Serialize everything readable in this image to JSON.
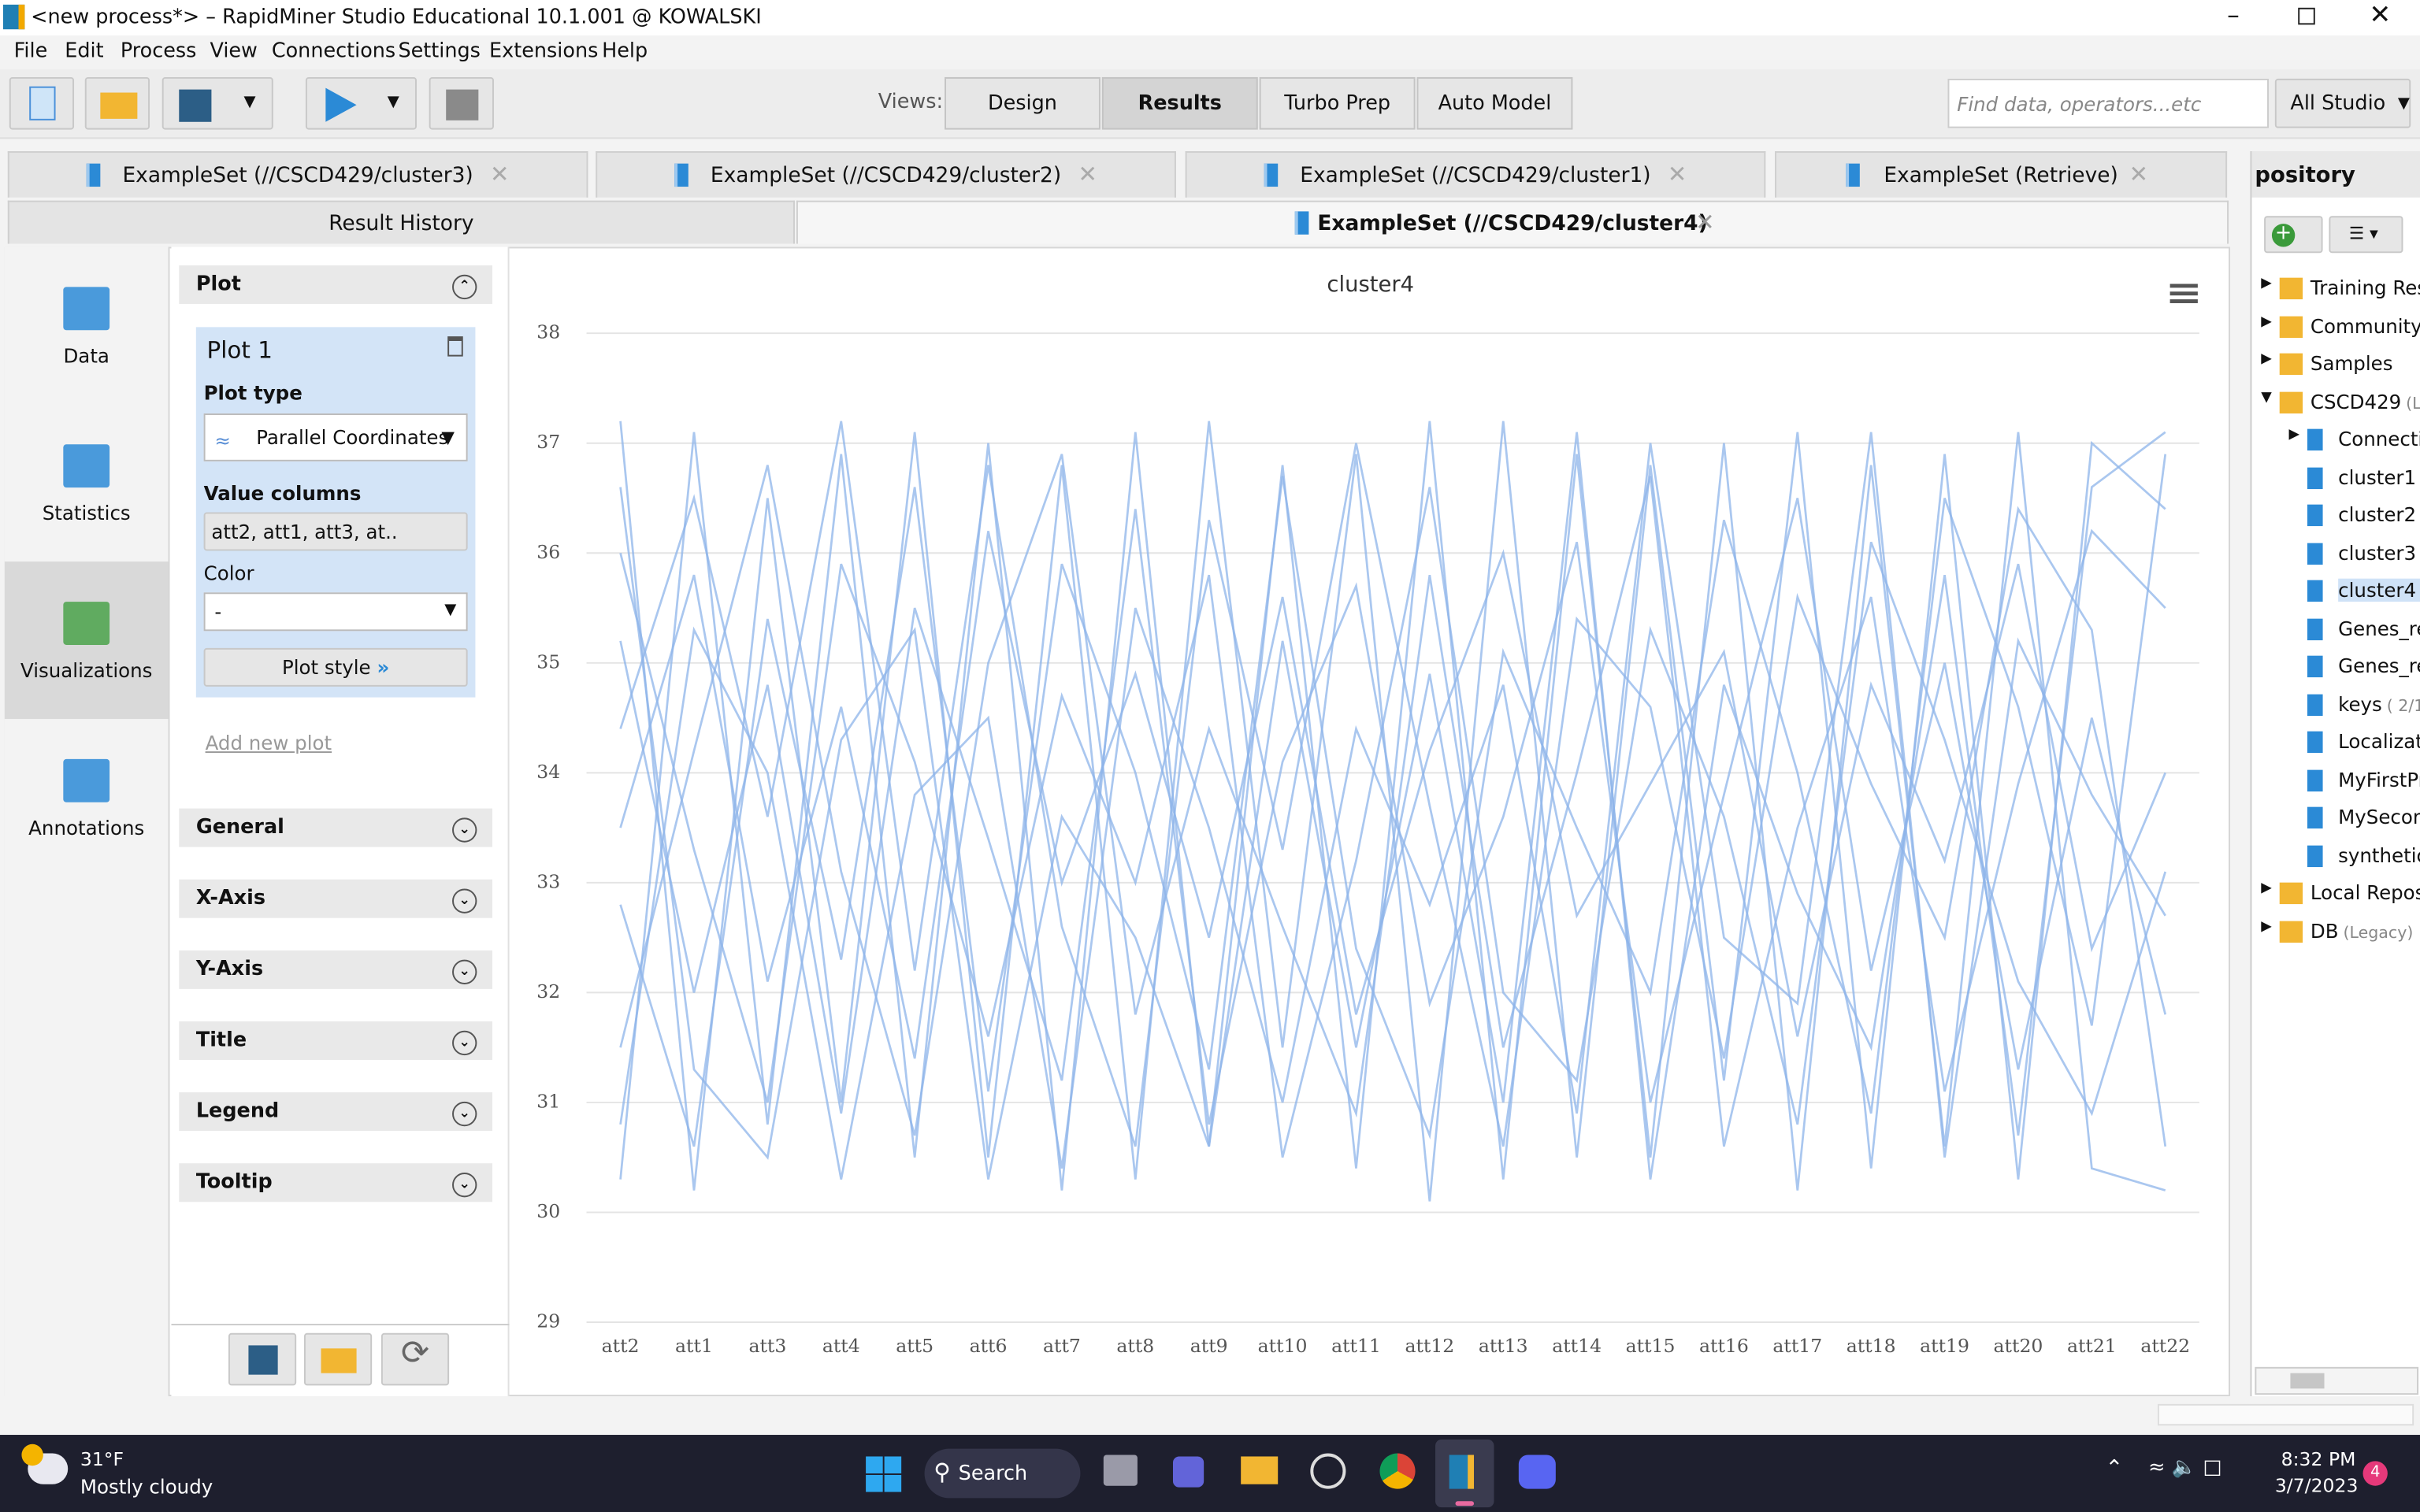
{
  "window": {
    "title": "<new process*> – RapidMiner Studio Educational 10.1.001 @ KOWALSKI"
  },
  "menu": [
    "File",
    "Edit",
    "Process",
    "View",
    "Connections",
    "Settings",
    "Extensions",
    "Help"
  ],
  "toolbar": {
    "views_label": "Views:",
    "views": [
      "Design",
      "Results",
      "Turbo Prep",
      "Auto Model"
    ],
    "search_placeholder": "Find data, operators...etc",
    "scope": "All Studio"
  },
  "tabs": [
    "ExampleSet (//CSCD429/cluster3)",
    "ExampleSet (//CSCD429/cluster2)",
    "ExampleSet (//CSCD429/cluster1)",
    "ExampleSet (Retrieve)"
  ],
  "result_tabs": [
    "Result History",
    "ExampleSet (//CSCD429/cluster4)"
  ],
  "side_nav": [
    "Data",
    "Statistics",
    "Visualizations",
    "Annotations"
  ],
  "plot_panel": {
    "header": "Plot",
    "plot_name": "Plot 1",
    "plot_type_label": "Plot type",
    "plot_type": "Parallel Coordinates",
    "value_columns_label": "Value columns",
    "value_columns": "att2, att1, att3, at..",
    "color_label": "Color",
    "color_value": "-",
    "plot_style": "Plot style",
    "add_plot": "Add new plot",
    "sections": [
      "General",
      "X-Axis",
      "Y-Axis",
      "Title",
      "Legend",
      "Tooltip"
    ]
  },
  "chart_data": {
    "type": "parallel",
    "title": "cluster4",
    "color": "#8db4ea",
    "categories": [
      "att2",
      "att1",
      "att3",
      "att4",
      "att5",
      "att6",
      "att7",
      "att8",
      "att9",
      "att10",
      "att11",
      "att12",
      "att13",
      "att14",
      "att15",
      "att16",
      "att17",
      "att18",
      "att19",
      "att20",
      "att21",
      "att22"
    ],
    "ylim": [
      29,
      38
    ],
    "yticks": [
      29,
      30,
      31,
      32,
      33,
      34,
      35,
      36,
      37,
      38
    ],
    "series": [
      {
        "values": [
          37.2,
          30.2,
          36.5,
          31,
          37.1,
          30.5,
          36.8,
          30.3,
          37.2,
          31.5,
          36.9,
          30.1,
          37.2,
          30.5,
          36.8,
          31.2,
          37.1,
          30.4,
          36.9,
          30.3,
          37.0,
          36.4
        ]
      },
      {
        "values": [
          30.3,
          37.1,
          30.8,
          36.9,
          30.5,
          37.0,
          30.2,
          37.1,
          30.6,
          36.8,
          30.4,
          37.2,
          30.3,
          36.9,
          30.5,
          37.0,
          30.2,
          36.8,
          30.6,
          37.1,
          30.4,
          30.2
        ]
      },
      {
        "values": [
          33.5,
          35.8,
          32.1,
          34.6,
          31.4,
          36.2,
          33.0,
          34.9,
          32.5,
          35.6,
          31.8,
          34.2,
          36.0,
          32.7,
          33.9,
          35.1,
          31.6,
          34.8,
          33.2,
          35.9,
          32.4,
          34.0
        ]
      },
      {
        "values": [
          35.2,
          32.0,
          34.8,
          30.9,
          35.5,
          33.4,
          31.2,
          36.4,
          30.8,
          34.1,
          35.7,
          31.9,
          33.6,
          36.1,
          31.0,
          33.8,
          36.5,
          32.2,
          35.0,
          31.3,
          34.5,
          31.8
        ]
      },
      {
        "values": [
          31.5,
          34.2,
          36.8,
          33.1,
          30.7,
          35.0,
          36.9,
          31.8,
          34.4,
          32.6,
          30.9,
          35.8,
          31.5,
          34.0,
          36.7,
          30.6,
          33.5,
          35.6,
          31.1,
          33.9,
          36.2,
          35.5
        ]
      },
      {
        "values": [
          36.0,
          33.3,
          31.0,
          35.9,
          34.1,
          31.6,
          34.7,
          33.0,
          35.8,
          30.5,
          33.2,
          36.6,
          32.0,
          31.2,
          35.3,
          33.6,
          30.8,
          36.1,
          34.3,
          32.1,
          30.9,
          33.1
        ]
      },
      {
        "values": [
          32.8,
          30.6,
          35.4,
          32.3,
          36.6,
          31.1,
          35.9,
          34.0,
          31.3,
          36.7,
          32.4,
          30.7,
          35.1,
          33.5,
          32.0,
          36.3,
          34.0,
          30.9,
          36.5,
          34.6,
          31.7,
          36.9
        ]
      },
      {
        "values": [
          34.4,
          36.5,
          33.6,
          37.2,
          32.2,
          36.8,
          32.6,
          30.6,
          36.3,
          33.3,
          37.0,
          33.7,
          30.6,
          35.4,
          34.6,
          31.4,
          35.6,
          33.9,
          32.5,
          36.4,
          35.3,
          30.6
        ]
      },
      {
        "values": [
          30.8,
          35.3,
          34.0,
          30.3,
          33.8,
          34.5,
          30.4,
          35.5,
          33.5,
          31.0,
          34.4,
          32.8,
          34.8,
          30.9,
          37.0,
          32.5,
          31.9,
          37.1,
          30.5,
          35.2,
          33.8,
          32.7
        ]
      },
      {
        "values": [
          36.6,
          31.3,
          30.5,
          34.3,
          35.3,
          30.3,
          33.6,
          32.5,
          30.6,
          35.2,
          31.5,
          34.9,
          31.0,
          37.1,
          30.3,
          34.8,
          32.9,
          31.5,
          35.8,
          30.7,
          36.6,
          37.1
        ]
      }
    ]
  },
  "repository": {
    "title": "pository",
    "items": [
      {
        "label": "Training Res"
      },
      {
        "label": "Community S"
      },
      {
        "label": "Samples"
      },
      {
        "label": "CSCD429",
        "note": "(L",
        "children": [
          {
            "label": "Connecti"
          },
          {
            "label": "cluster1",
            "note": "("
          },
          {
            "label": "cluster2",
            "note": "("
          },
          {
            "label": "cluster3",
            "note": "("
          },
          {
            "label": "cluster4",
            "note": "("
          },
          {
            "label": "Genes_re"
          },
          {
            "label": "Genes_re"
          },
          {
            "label": "keys",
            "note": "( 2/1"
          },
          {
            "label": "Localizati"
          },
          {
            "label": "MyFirstPr"
          },
          {
            "label": "MySecon"
          },
          {
            "label": "synthetic_"
          }
        ]
      },
      {
        "label": "Local Repos"
      },
      {
        "label": "DB",
        "note": "(Legacy)"
      }
    ]
  },
  "taskbar": {
    "temperature": "31°F",
    "weather": "Mostly cloudy",
    "search": "Search",
    "time": "8:32 PM",
    "date": "3/7/2023",
    "badge": "4"
  }
}
